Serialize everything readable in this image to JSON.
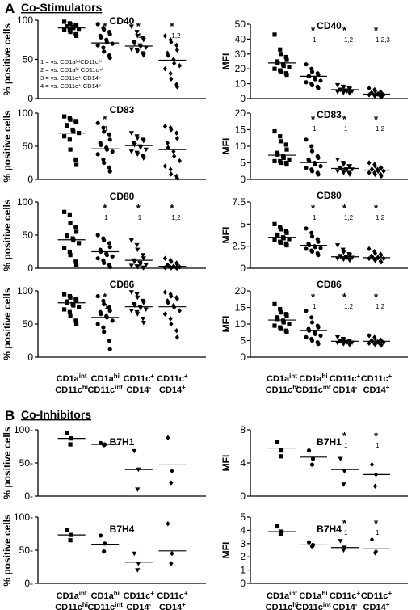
{
  "section_a": {
    "letter": "A",
    "title": "Co-Stimulators"
  },
  "section_b": {
    "letter": "B",
    "title": "Co-Inhibitors"
  },
  "legend_lines": [
    "1 = vs. CD1aᴵⁿᵗCD11cʰⁱ",
    "2 = vs. CD1aʰⁱ CD11cⁱⁿᵗ",
    "3 = vs. CD11c⁺ CD14⁻",
    "4 = vs. CD11c⁺ CD14⁺"
  ],
  "groups": [
    {
      "line1": "CD1a",
      "sup1": "int",
      "line2": "CD11c",
      "sup2": "hi"
    },
    {
      "line1": "CD1a",
      "sup1": "hi",
      "line2": "CD11c",
      "sup2": "int"
    },
    {
      "line1": "CD11c",
      "sup1": "+",
      "line2": "CD14",
      "sup2": "-"
    },
    {
      "line1": "CD11c",
      "sup1": "+",
      "line2": "CD14",
      "sup2": "+"
    }
  ],
  "colors": {
    "points": "#000000",
    "axis": "#000000"
  },
  "chart_data": [
    {
      "id": "a_pct_cd40",
      "type": "scatter",
      "title": "CD40",
      "ylabel": "% positive cells",
      "ylim": [
        0,
        100
      ],
      "yticks": [
        0,
        50,
        100
      ],
      "show_legend": true,
      "series": [
        {
          "marker": "square",
          "values": [
            98,
            96,
            95,
            94,
            93,
            92,
            92,
            91,
            90,
            89,
            88,
            87,
            85,
            83,
            80
          ],
          "median": 90,
          "annotation": ""
        },
        {
          "marker": "circle",
          "values": [
            95,
            90,
            88,
            85,
            82,
            80,
            78,
            75,
            72,
            70,
            68,
            65,
            60,
            55,
            52
          ],
          "median": 71,
          "annotation": "*"
        },
        {
          "marker": "triangle-down",
          "values": [
            92,
            85,
            80,
            78,
            75,
            72,
            70,
            68,
            66,
            65,
            63,
            62,
            60,
            58,
            55
          ],
          "median": 67,
          "annotation": "*₁"
        },
        {
          "marker": "diamond",
          "values": [
            80,
            75,
            72,
            68,
            62,
            58,
            55,
            50,
            45,
            42,
            38,
            32,
            25,
            18,
            15
          ],
          "median": 49,
          "annotation": "*₁,₂"
        }
      ]
    },
    {
      "id": "a_mfi_cd40",
      "type": "scatter",
      "title": "CD40",
      "ylabel": "MFI",
      "ylim": [
        0,
        50
      ],
      "yticks": [
        0,
        10,
        20,
        30,
        40,
        50
      ],
      "show_legend": false,
      "series": [
        {
          "marker": "square",
          "values": [
            43,
            33,
            30,
            28,
            26,
            25,
            24,
            23,
            22,
            21,
            20,
            19,
            18,
            17,
            16
          ],
          "median": 24,
          "annotation": ""
        },
        {
          "marker": "circle",
          "values": [
            23,
            20,
            18,
            17,
            16,
            15,
            15,
            14,
            13,
            12,
            11,
            10,
            9,
            8,
            7
          ],
          "median": 15,
          "annotation": "*₁"
        },
        {
          "marker": "triangle-down",
          "values": [
            9,
            8,
            7.5,
            7,
            6.5,
            6,
            6,
            5.5,
            5,
            5,
            4.5,
            4.5,
            4,
            4,
            3.5
          ],
          "median": 6,
          "annotation": "*₁,₂"
        },
        {
          "marker": "diamond",
          "values": [
            7,
            6,
            5,
            4.5,
            4,
            4,
            3.5,
            3,
            3,
            2.5,
            2.5,
            2,
            2,
            1.5,
            1
          ],
          "median": 3,
          "annotation": "*₁,₂,₃"
        }
      ]
    },
    {
      "id": "a_pct_cd83",
      "type": "scatter",
      "title": "CD83",
      "ylabel": "% positive cells",
      "ylim": [
        0,
        100
      ],
      "yticks": [
        0,
        50,
        100
      ],
      "show_legend": false,
      "series": [
        {
          "marker": "square",
          "values": [
            95,
            92,
            90,
            88,
            86,
            82,
            80,
            75,
            72,
            70,
            65,
            60,
            45,
            30,
            22
          ],
          "median": 70,
          "annotation": ""
        },
        {
          "marker": "circle",
          "values": [
            85,
            78,
            72,
            68,
            60,
            55,
            52,
            48,
            45,
            42,
            38,
            30,
            25,
            18,
            12
          ],
          "median": 46,
          "annotation": "*₁"
        },
        {
          "marker": "triangle-down",
          "values": [
            70,
            65,
            62,
            60,
            58,
            55,
            52,
            50,
            48,
            45,
            42,
            40,
            38,
            35,
            32
          ],
          "median": 51,
          "annotation": ""
        },
        {
          "marker": "diamond",
          "values": [
            80,
            78,
            75,
            70,
            62,
            55,
            48,
            42,
            35,
            28,
            20,
            15,
            8,
            5,
            2
          ],
          "median": 45,
          "annotation": ""
        }
      ]
    },
    {
      "id": "a_mfi_cd83",
      "type": "scatter",
      "title": "CD83",
      "ylabel": "MFI",
      "ylim": [
        0,
        20
      ],
      "yticks": [
        0,
        5,
        10,
        15,
        20
      ],
      "show_legend": false,
      "series": [
        {
          "marker": "square",
          "values": [
            14.5,
            13,
            11.5,
            10.5,
            9,
            8,
            7.5,
            7,
            6.5,
            6,
            5.5,
            5.5,
            5,
            5,
            4.5
          ],
          "median": 7.3,
          "annotation": ""
        },
        {
          "marker": "circle",
          "values": [
            12,
            10,
            8.5,
            7,
            6.5,
            6,
            5.5,
            5,
            4.5,
            4,
            3.5,
            3,
            2.5,
            2,
            1.5
          ],
          "median": 5.1,
          "annotation": "*₁"
        },
        {
          "marker": "triangle-down",
          "values": [
            6,
            5,
            4.5,
            4,
            4,
            3.5,
            3.5,
            3,
            3,
            3,
            2.5,
            2.5,
            2,
            2,
            1.5
          ],
          "median": 3.3,
          "annotation": "*₁"
        },
        {
          "marker": "diamond",
          "values": [
            5,
            4.5,
            4,
            3.5,
            3.5,
            3,
            3,
            3,
            2.5,
            2.5,
            2,
            2,
            1.5,
            1.5,
            1
          ],
          "median": 2.8,
          "annotation": "*₁,₂"
        }
      ]
    },
    {
      "id": "a_pct_cd80",
      "type": "scatter",
      "title": "CD80",
      "ylabel": "% positive cells",
      "ylim": [
        0,
        100
      ],
      "yticks": [
        0,
        50,
        100
      ],
      "show_legend": false,
      "series": [
        {
          "marker": "square",
          "values": [
            85,
            80,
            68,
            62,
            55,
            50,
            48,
            45,
            42,
            38,
            30,
            25,
            20,
            10,
            5
          ],
          "median": 43,
          "annotation": ""
        },
        {
          "marker": "circle",
          "values": [
            50,
            45,
            42,
            38,
            32,
            28,
            25,
            22,
            20,
            18,
            15,
            12,
            8,
            5,
            2
          ],
          "median": 25,
          "annotation": "*₁"
        },
        {
          "marker": "triangle-down",
          "values": [
            42,
            35,
            28,
            20,
            15,
            12,
            10,
            8,
            6,
            5,
            4,
            3,
            2,
            1,
            0.5
          ],
          "median": 12,
          "annotation": "*₁"
        },
        {
          "marker": "diamond",
          "values": [
            15,
            12,
            10,
            8,
            6,
            5,
            4,
            3,
            2,
            2,
            1,
            1,
            0.5,
            0.5,
            0.2
          ],
          "median": 3,
          "annotation": "*₁,₂"
        }
      ]
    },
    {
      "id": "a_mfi_cd80",
      "type": "scatter",
      "title": "CD80",
      "ylabel": "MFI",
      "ylim": [
        0,
        7.5
      ],
      "yticks": [
        0,
        2.5,
        5,
        7.5
      ],
      "show_legend": false,
      "series": [
        {
          "marker": "square",
          "values": [
            5,
            4.7,
            4.4,
            4.2,
            4,
            3.8,
            3.7,
            3.5,
            3.4,
            3.3,
            3.2,
            3,
            2.9,
            2.8,
            2.6
          ],
          "median": 3.5,
          "annotation": ""
        },
        {
          "marker": "circle",
          "values": [
            4.5,
            4,
            3.6,
            3.3,
            3,
            2.8,
            2.6,
            2.5,
            2.4,
            2.3,
            2.2,
            2,
            1.9,
            1.7,
            1.5
          ],
          "median": 2.6,
          "annotation": "*₁"
        },
        {
          "marker": "triangle-down",
          "values": [
            2.6,
            2.1,
            1.8,
            1.6,
            1.5,
            1.4,
            1.3,
            1.3,
            1.2,
            1.2,
            1.1,
            1.1,
            1,
            1,
            0.9
          ],
          "median": 1.3,
          "annotation": "*₁,₂"
        },
        {
          "marker": "diamond",
          "values": [
            2.2,
            1.9,
            1.7,
            1.6,
            1.5,
            1.4,
            1.3,
            1.2,
            1.2,
            1.1,
            1.1,
            1,
            0.9,
            0.8,
            0.7
          ],
          "median": 1.2,
          "annotation": "*₁,₂"
        }
      ]
    },
    {
      "id": "a_pct_cd86",
      "type": "scatter",
      "title": "CD86",
      "ylabel": "% positive cells",
      "ylim": [
        0,
        100
      ],
      "yticks": [
        0,
        50,
        100
      ],
      "show_legend": false,
      "series": [
        {
          "marker": "square",
          "values": [
            95,
            92,
            90,
            88,
            86,
            84,
            82,
            80,
            78,
            76,
            72,
            68,
            62,
            55,
            50
          ],
          "median": 82,
          "annotation": ""
        },
        {
          "marker": "circle",
          "values": [
            92,
            85,
            80,
            75,
            70,
            68,
            65,
            62,
            60,
            55,
            50,
            45,
            38,
            25,
            12
          ],
          "median": 60,
          "annotation": "*₁"
        },
        {
          "marker": "triangle-down",
          "values": [
            98,
            95,
            90,
            85,
            82,
            80,
            78,
            76,
            74,
            72,
            70,
            68,
            65,
            58,
            52
          ],
          "median": 76,
          "annotation": ""
        },
        {
          "marker": "diamond",
          "values": [
            98,
            95,
            92,
            90,
            88,
            85,
            82,
            78,
            75,
            70,
            65,
            58,
            50,
            40,
            30
          ],
          "median": 76,
          "annotation": ""
        }
      ]
    },
    {
      "id": "a_mfi_cd86",
      "type": "scatter",
      "title": "CD86",
      "ylabel": "MFI",
      "ylim": [
        0,
        20
      ],
      "yticks": [
        0,
        5,
        10,
        15,
        20
      ],
      "show_legend": false,
      "series": [
        {
          "marker": "square",
          "values": [
            16,
            14.5,
            13.5,
            13,
            12.5,
            12,
            11.5,
            11,
            10.5,
            10,
            9.5,
            9,
            8.5,
            8,
            7.5
          ],
          "median": 11.2,
          "annotation": ""
        },
        {
          "marker": "circle",
          "values": [
            14,
            12,
            10.5,
            9.5,
            9,
            8.5,
            8,
            7.5,
            7,
            6.5,
            6,
            5.5,
            5,
            4.5,
            4
          ],
          "median": 8,
          "annotation": "*₁"
        },
        {
          "marker": "triangle-down",
          "values": [
            6,
            5.5,
            5.2,
            5,
            5,
            4.8,
            4.8,
            4.6,
            4.5,
            4.4,
            4.3,
            4.2,
            4,
            3.9,
            3.8
          ],
          "median": 4.8,
          "annotation": "*₁,₂"
        },
        {
          "marker": "diamond",
          "values": [
            6.5,
            6,
            5.5,
            5.2,
            5,
            5,
            4.8,
            4.6,
            4.5,
            4.4,
            4.2,
            4,
            3.9,
            3.8,
            3.6
          ],
          "median": 4.8,
          "annotation": "*₁,₂"
        }
      ]
    },
    {
      "id": "b_pct_b7h1",
      "type": "scatter",
      "title": "B7H1",
      "ylabel": "% positive cells",
      "ylim": [
        0,
        100
      ],
      "yticks": [
        0,
        50,
        100
      ],
      "yticklabels": [
        "0-",
        "50-",
        "100-"
      ],
      "show_legend": false,
      "series": [
        {
          "marker": "square",
          "values": [
            95,
            87,
            78
          ],
          "median": 87,
          "annotation": ""
        },
        {
          "marker": "circle",
          "values": [
            80,
            78,
            77
          ],
          "median": 78,
          "annotation": ""
        },
        {
          "marker": "triangle-down",
          "values": [
            68,
            40,
            10
          ],
          "median": 40,
          "annotation": ""
        },
        {
          "marker": "diamond",
          "values": [
            88,
            38,
            20
          ],
          "median": 47,
          "annotation": ""
        }
      ]
    },
    {
      "id": "b_mfi_b7h1",
      "type": "scatter",
      "title": "B7H1",
      "ylabel": "MFI",
      "ylim": [
        0,
        8
      ],
      "yticks": [
        0,
        4,
        8
      ],
      "show_legend": false,
      "series": [
        {
          "marker": "square",
          "values": [
            6.5,
            5.5,
            4.8
          ],
          "median": 5.8,
          "annotation": ""
        },
        {
          "marker": "circle",
          "values": [
            5.5,
            4.5,
            3.8
          ],
          "median": 4.7,
          "annotation": ""
        },
        {
          "marker": "triangle-down",
          "values": [
            4.5,
            3,
            1.4
          ],
          "median": 3.2,
          "annotation": "*₁"
        },
        {
          "marker": "diamond",
          "values": [
            3.8,
            2.6,
            1.2
          ],
          "median": 2.6,
          "annotation": "*₁"
        }
      ]
    },
    {
      "id": "b_pct_b7h4",
      "type": "scatter",
      "title": "B7H4",
      "ylabel": "% positive cells",
      "ylim": [
        0,
        100
      ],
      "yticks": [
        0,
        50,
        100
      ],
      "yticklabels": [
        "0-",
        "50-",
        "100-"
      ],
      "show_legend": false,
      "series": [
        {
          "marker": "square",
          "values": [
            80,
            73,
            65
          ],
          "median": 73,
          "annotation": ""
        },
        {
          "marker": "circle",
          "values": [
            72,
            60,
            48
          ],
          "median": 59,
          "annotation": ""
        },
        {
          "marker": "triangle-down",
          "values": [
            45,
            30,
            20
          ],
          "median": 32,
          "annotation": ""
        },
        {
          "marker": "diamond",
          "values": [
            90,
            45,
            30
          ],
          "median": 49,
          "annotation": ""
        }
      ]
    },
    {
      "id": "b_mfi_b7h4",
      "type": "scatter",
      "title": "B7H4",
      "ylabel": "MFI",
      "ylim": [
        0,
        5
      ],
      "yticks": [
        0,
        1,
        2,
        3,
        4,
        5
      ],
      "show_legend": false,
      "series": [
        {
          "marker": "square",
          "values": [
            4.3,
            3.9,
            3.7
          ],
          "median": 3.9,
          "annotation": ""
        },
        {
          "marker": "circle",
          "values": [
            3.1,
            2.9,
            2.8
          ],
          "median": 2.9,
          "annotation": ""
        },
        {
          "marker": "triangle-down",
          "values": [
            3.2,
            2.7,
            2.5
          ],
          "median": 2.7,
          "annotation": "*₁"
        },
        {
          "marker": "diamond",
          "values": [
            3.3,
            2.4,
            2.3
          ],
          "median": 2.6,
          "annotation": "*₁"
        }
      ]
    }
  ]
}
